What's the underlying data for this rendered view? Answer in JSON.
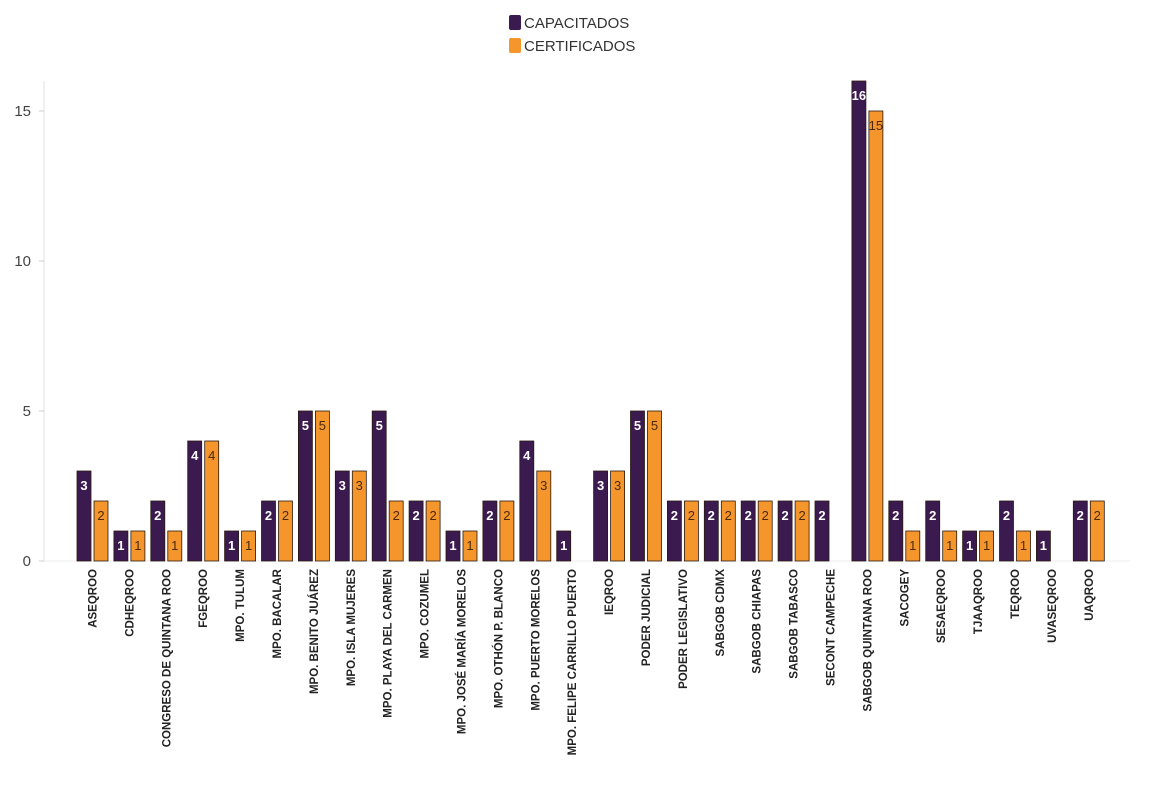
{
  "chart_data": {
    "type": "bar",
    "title": "",
    "xlabel": "",
    "ylabel": "",
    "ylim": [
      0,
      16
    ],
    "yticks": [
      0,
      5,
      10,
      15
    ],
    "legend_position": "top-center",
    "categories": [
      "ASEQROO",
      "CDHEQROO",
      "CONGRESO DE QUINTANA ROO",
      "FGEQROO",
      "MPO. TULUM",
      "MPO. BACALAR",
      "MPO. BENITO JUÁREZ",
      "MPO. ISLA MUJERES",
      "MPO. PLAYA DEL CARMEN",
      "MPO. COZUMEL",
      "MPO. JOSÉ MARÍA MORELOS",
      "MPO. OTHÓN P. BLANCO",
      "MPO. PUERTO MORELOS",
      "MPO. FELIPE CARRILLO PUERTO",
      "IEQROO",
      "PODER JUDICIAL",
      "PODER LEGISLATIVO",
      "SABGOB CDMX",
      "SABGOB CHIAPAS",
      "SABGOB TABASCO",
      "SECONT CAMPECHE",
      "SABGOB QUINTANA ROO",
      "SACOGEY",
      "SESAEQROO",
      "TJAAQROO",
      "TEQROO",
      "UVASEQROO",
      "UAQROO"
    ],
    "series": [
      {
        "name": "CAPACITADOS",
        "color": "#3b1a4f",
        "label_color": "#ffffff",
        "values": [
          3,
          1,
          2,
          4,
          1,
          2,
          5,
          3,
          5,
          2,
          1,
          2,
          4,
          1,
          3,
          5,
          2,
          2,
          2,
          2,
          2,
          16,
          2,
          2,
          1,
          2,
          1,
          2
        ]
      },
      {
        "name": "CERTIFICADOS",
        "color": "#f5962d",
        "label_color": "#4a2a0a",
        "values": [
          2,
          1,
          1,
          4,
          1,
          2,
          5,
          3,
          2,
          2,
          1,
          2,
          3,
          null,
          3,
          5,
          2,
          2,
          2,
          2,
          null,
          15,
          1,
          1,
          1,
          1,
          null,
          2
        ]
      }
    ]
  }
}
